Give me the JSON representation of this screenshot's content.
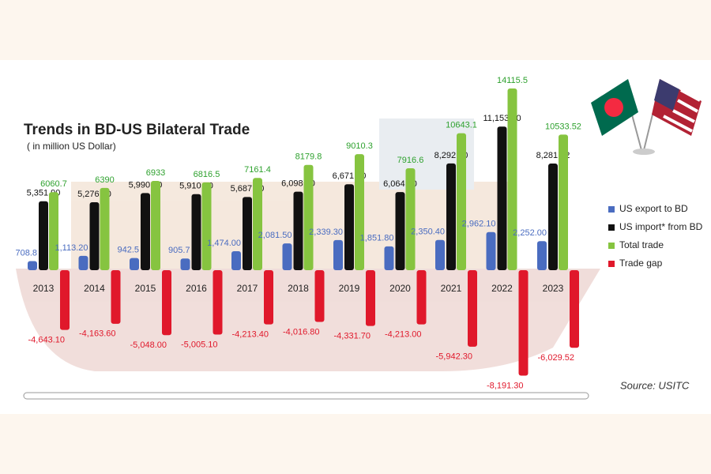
{
  "chart_data": {
    "type": "bar",
    "title": "Trends in BD-US Bilateral Trade",
    "subtitle": "( in million US Dollar)",
    "source": "Source:  USITC",
    "categories": [
      "2013",
      "2014",
      "2015",
      "2016",
      "2017",
      "2018",
      "2019",
      "2020",
      "2021",
      "2022",
      "2023"
    ],
    "series": [
      {
        "name": "US export to BD",
        "color": "#4a6cc0",
        "values": [
          708.8,
          1113.2,
          942.5,
          905.7,
          1474.0,
          2081.5,
          2339.3,
          1851.8,
          2350.4,
          2962.1,
          2252.0
        ],
        "value_labels": [
          "708.8",
          "1,113.20",
          "942.5",
          "905.7",
          "1,474.00",
          "2,081.50",
          "2,339.30",
          "1,851.80",
          "2,350.40",
          "2,962.10",
          "2,252.00"
        ]
      },
      {
        "name": "US import* from BD",
        "color": "#111111",
        "values": [
          5351.9,
          5276.8,
          5990.5,
          5910.8,
          5687.4,
          6098.3,
          6671.0,
          6064.8,
          8292.7,
          11153.4,
          8281.52
        ],
        "value_labels": [
          "5,351.90",
          "5,276.80",
          "5,990.50",
          "5,910.80",
          "5,687.40",
          "6,098.30",
          "6,671.00",
          "6,064.80",
          "8,292.70",
          "11,153.40",
          "8,281.52"
        ]
      },
      {
        "name": "Total trade",
        "color": "#86c440",
        "values": [
          6060.7,
          6390,
          6933,
          6816.5,
          7161.4,
          8179.8,
          9010.3,
          7916.6,
          10643.1,
          14115.5,
          10533.52
        ]
      },
      {
        "name": "Trade gap",
        "color": "#e0182b",
        "values": [
          -4643.1,
          -4163.6,
          -5048.0,
          -5005.1,
          -4213.4,
          -4016.8,
          -4331.7,
          -4213.0,
          -5942.3,
          -8191.3,
          -6029.52
        ],
        "value_labels": [
          "-4,643.10",
          "-4,163.60",
          "-5,048.00",
          "-5,005.10",
          "-4,213.40",
          "-4,016.80",
          "-4,331.70",
          "-4,213.00",
          "-5,942.30",
          "-8,191.30",
          "-6,029.52"
        ]
      }
    ]
  }
}
